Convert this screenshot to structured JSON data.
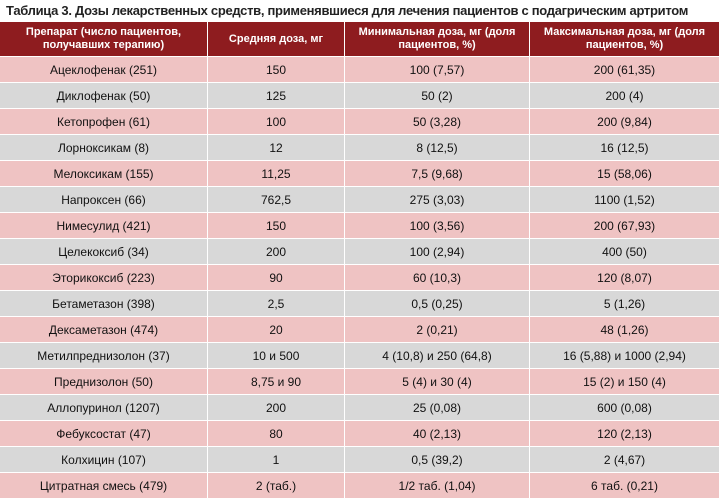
{
  "title": "Таблица 3. Дозы лекарственных средств, применявшиеся для лечения пациентов с подагрическим артритом",
  "table": {
    "header": [
      "Препарат (число пациентов, получавших терапию)",
      "Средняя доза, мг",
      "Минимальная доза, мг (доля пациентов, %)",
      "Максимальная доза, мг (доля пациентов, %)"
    ],
    "rows": [
      [
        "Ацеклофенак (251)",
        "150",
        "100 (7,57)",
        "200 (61,35)"
      ],
      [
        "Диклофенак (50)",
        "125",
        "50 (2)",
        "200 (4)"
      ],
      [
        "Кетопрофен (61)",
        "100",
        "50 (3,28)",
        "200 (9,84)"
      ],
      [
        "Лорноксикам (8)",
        "12",
        "8 (12,5)",
        "16 (12,5)"
      ],
      [
        "Мелоксикам (155)",
        "11,25",
        "7,5 (9,68)",
        "15 (58,06)"
      ],
      [
        "Напроксен (66)",
        "762,5",
        "275 (3,03)",
        "1100 (1,52)"
      ],
      [
        "Нимесулид (421)",
        "150",
        "100 (3,56)",
        "200 (67,93)"
      ],
      [
        "Целекоксиб (34)",
        "200",
        "100 (2,94)",
        "400 (50)"
      ],
      [
        "Эторикоксиб (223)",
        "90",
        "60 (10,3)",
        "120 (8,07)"
      ],
      [
        "Бетаметазон (398)",
        "2,5",
        "0,5 (0,25)",
        "5 (1,26)"
      ],
      [
        "Дексаметазон (474)",
        "20",
        "2 (0,21)",
        "48 (1,26)"
      ],
      [
        "Метилпреднизолон (37)",
        "10 и 500",
        "4 (10,8) и 250 (64,8)",
        "16 (5,88) и 1000 (2,94)"
      ],
      [
        "Преднизолон (50)",
        "8,75 и 90",
        "5 (4) и 30 (4)",
        "15 (2) и 150 (4)"
      ],
      [
        "Аллопуринол (1207)",
        "200",
        "25 (0,08)",
        "600 (0,08)"
      ],
      [
        "Фебуксостат (47)",
        "80",
        "40 (2,13)",
        "120 (2,13)"
      ],
      [
        "Колхицин (107)",
        "1",
        "0,5 (39,2)",
        "2 (4,67)"
      ],
      [
        "Цитратная смесь (479)",
        "2 (таб.)",
        "1/2 таб. (1,04)",
        "6 таб. (0,21)"
      ]
    ]
  }
}
